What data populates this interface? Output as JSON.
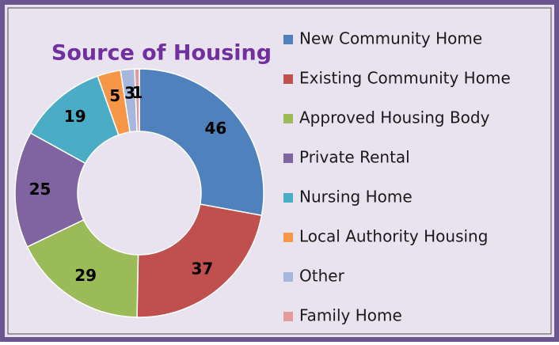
{
  "chart_data": {
    "type": "donut",
    "title": "Source of Housing",
    "categories": [
      "New Community Home",
      "Existing Community Home",
      "Approved Housing Body",
      "Private Rental",
      "Nursing Home",
      "Local Authority Housing",
      "Other",
      "Family Home"
    ],
    "values": [
      46,
      37,
      29,
      25,
      19,
      5,
      3,
      1
    ],
    "colors": [
      "#4f81bd",
      "#c0504d",
      "#9bbb59",
      "#8064a2",
      "#4bacc6",
      "#f79646",
      "#a5b7dc",
      "#e29a9a"
    ],
    "legend": "right"
  }
}
